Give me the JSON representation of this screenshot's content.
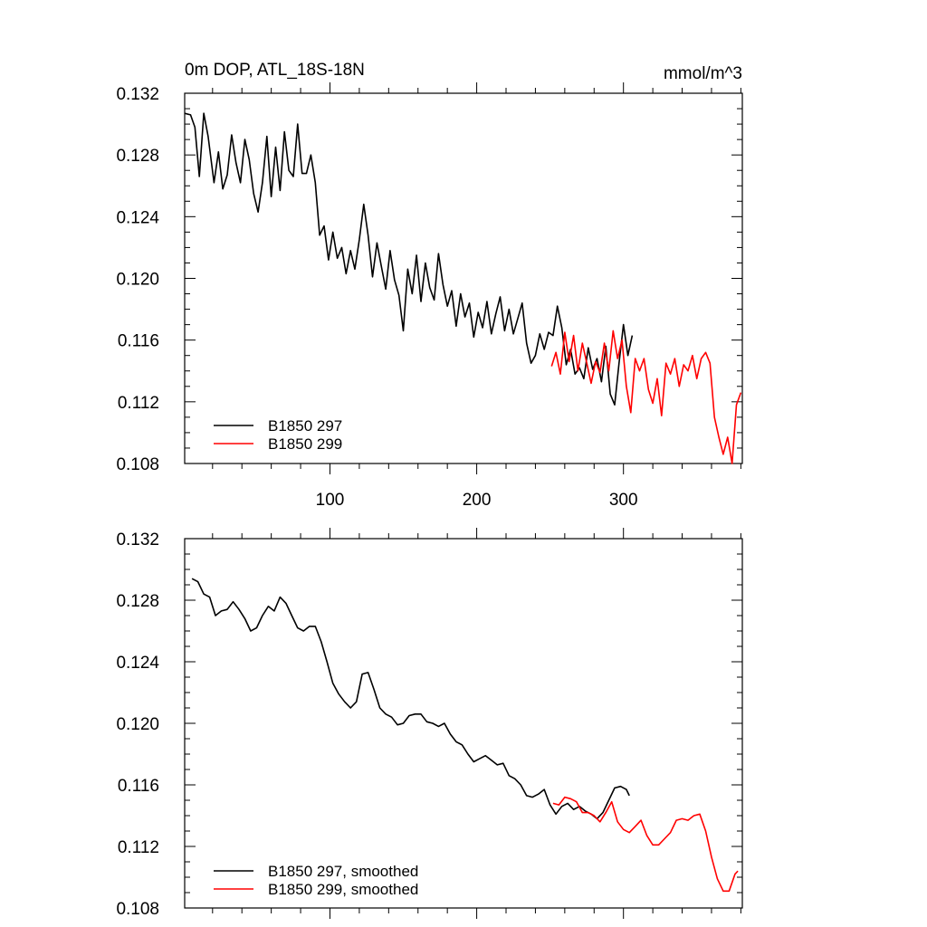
{
  "chart_data": [
    {
      "type": "line",
      "title": "0m DOP, ATL_18S-18N",
      "units": "mmol/m^3",
      "xlabel": "",
      "ylabel": "",
      "xlim": [
        1,
        381
      ],
      "ylim": [
        0.108,
        0.132
      ],
      "xticks": [
        100,
        200,
        300
      ],
      "xtick_labels": [
        "100",
        "200",
        "300"
      ],
      "yticks": [
        0.108,
        0.112,
        0.116,
        0.12,
        0.124,
        0.128,
        0.132
      ],
      "ytick_labels": [
        "0.108",
        "0.112",
        "0.116",
        "0.120",
        "0.124",
        "0.128",
        "0.132"
      ],
      "legend_position": "bottom-left",
      "series": [
        {
          "name": "B1850 297",
          "color": "#000000",
          "x": [
            1,
            5,
            8,
            11,
            14,
            17,
            21,
            24,
            27,
            30,
            33,
            36,
            39,
            42,
            45,
            48,
            51,
            54,
            57,
            60,
            63,
            66,
            69,
            72,
            75,
            78,
            81,
            84,
            87,
            90,
            93,
            96,
            99,
            102,
            105,
            108,
            111,
            114,
            117,
            120,
            123,
            126,
            129,
            132,
            135,
            138,
            141,
            144,
            147,
            150,
            153,
            156,
            159,
            162,
            165,
            168,
            171,
            174,
            177,
            180,
            183,
            186,
            189,
            192,
            195,
            198,
            201,
            204,
            207,
            210,
            213,
            216,
            219,
            222,
            225,
            228,
            231,
            234,
            237,
            240,
            243,
            246,
            249,
            252,
            255,
            258,
            261,
            264,
            267,
            270,
            273,
            276,
            279,
            282,
            285,
            288,
            291,
            294,
            297,
            300,
            303,
            306
          ],
          "values": [
            0.1307,
            0.1306,
            0.1298,
            0.1266,
            0.1307,
            0.1292,
            0.1262,
            0.1282,
            0.1258,
            0.1267,
            0.1293,
            0.1275,
            0.1262,
            0.129,
            0.1277,
            0.1255,
            0.1243,
            0.1262,
            0.1292,
            0.1253,
            0.1285,
            0.1257,
            0.1295,
            0.127,
            0.1266,
            0.13,
            0.1268,
            0.1268,
            0.128,
            0.1262,
            0.1228,
            0.1234,
            0.1212,
            0.123,
            0.1213,
            0.122,
            0.1203,
            0.1218,
            0.1206,
            0.1225,
            0.1248,
            0.1228,
            0.1201,
            0.1223,
            0.1208,
            0.1193,
            0.1218,
            0.1199,
            0.1189,
            0.1166,
            0.1206,
            0.119,
            0.1215,
            0.1185,
            0.121,
            0.1194,
            0.1186,
            0.1216,
            0.1196,
            0.1182,
            0.1192,
            0.1169,
            0.119,
            0.1175,
            0.1184,
            0.1162,
            0.1178,
            0.1168,
            0.1185,
            0.1164,
            0.1177,
            0.1188,
            0.1166,
            0.118,
            0.1164,
            0.1174,
            0.1184,
            0.1158,
            0.1145,
            0.115,
            0.1164,
            0.1154,
            0.1165,
            0.1163,
            0.1182,
            0.1168,
            0.1144,
            0.1154,
            0.1138,
            0.1142,
            0.1135,
            0.1155,
            0.1141,
            0.1148,
            0.1133,
            0.1156,
            0.1125,
            0.1118,
            0.1145,
            0.117,
            0.115,
            0.1163
          ]
        },
        {
          "name": "B1850 299",
          "color": "#ff0000",
          "x": [
            251,
            254,
            257,
            260,
            263,
            266,
            269,
            272,
            275,
            278,
            281,
            284,
            287,
            290,
            293,
            296,
            299,
            302,
            305,
            308,
            311,
            314,
            317,
            320,
            323,
            326,
            329,
            332,
            335,
            338,
            341,
            344,
            347,
            350,
            353,
            356,
            359,
            362,
            365,
            368,
            371,
            374,
            377,
            380
          ],
          "values": [
            0.1143,
            0.1152,
            0.1138,
            0.1165,
            0.1146,
            0.1163,
            0.114,
            0.1158,
            0.1145,
            0.1132,
            0.1146,
            0.1139,
            0.1158,
            0.114,
            0.1166,
            0.1148,
            0.116,
            0.113,
            0.1113,
            0.1148,
            0.114,
            0.1148,
            0.1128,
            0.1119,
            0.1135,
            0.1111,
            0.1145,
            0.1138,
            0.1148,
            0.113,
            0.1144,
            0.114,
            0.115,
            0.1135,
            0.1148,
            0.1152,
            0.1145,
            0.111,
            0.1097,
            0.1086,
            0.1097,
            0.108,
            0.1118,
            0.1126
          ]
        }
      ]
    },
    {
      "type": "line",
      "title": "",
      "xlabel": "",
      "ylabel": "",
      "xlim": [
        1,
        381
      ],
      "ylim": [
        0.108,
        0.132
      ],
      "xticks": [
        100,
        200,
        300
      ],
      "yticks": [
        0.108,
        0.112,
        0.116,
        0.12,
        0.124,
        0.128,
        0.132
      ],
      "ytick_labels": [
        "0.108",
        "0.112",
        "0.116",
        "0.120",
        "0.124",
        "0.128",
        "0.132"
      ],
      "legend_position": "bottom-left",
      "series": [
        {
          "name": "B1850 297, smoothed",
          "color": "#000000",
          "x": [
            6,
            10,
            14,
            18,
            22,
            26,
            30,
            34,
            38,
            42,
            46,
            50,
            54,
            58,
            62,
            66,
            70,
            74,
            78,
            82,
            86,
            90,
            94,
            98,
            102,
            106,
            110,
            114,
            118,
            122,
            126,
            130,
            134,
            138,
            142,
            146,
            150,
            154,
            158,
            162,
            166,
            170,
            174,
            178,
            182,
            186,
            190,
            194,
            198,
            202,
            206,
            210,
            214,
            218,
            222,
            226,
            230,
            234,
            238,
            242,
            246,
            250,
            254,
            258,
            262,
            266,
            270,
            274,
            278,
            282,
            286,
            290,
            294,
            298,
            302,
            304
          ],
          "values": [
            0.1294,
            0.1292,
            0.1284,
            0.1282,
            0.127,
            0.1273,
            0.1274,
            0.1279,
            0.1274,
            0.1268,
            0.126,
            0.1262,
            0.127,
            0.1276,
            0.1273,
            0.1282,
            0.1278,
            0.127,
            0.1262,
            0.126,
            0.1263,
            0.1263,
            0.1253,
            0.124,
            0.1226,
            0.1219,
            0.1214,
            0.121,
            0.1214,
            0.1232,
            0.1233,
            0.1222,
            0.121,
            0.1206,
            0.1204,
            0.1199,
            0.12,
            0.1205,
            0.1206,
            0.1206,
            0.1201,
            0.12,
            0.1198,
            0.12,
            0.1193,
            0.1188,
            0.1186,
            0.118,
            0.1175,
            0.1177,
            0.1179,
            0.1176,
            0.1173,
            0.1174,
            0.1166,
            0.1164,
            0.116,
            0.1153,
            0.1152,
            0.1154,
            0.1157,
            0.1147,
            0.1141,
            0.1146,
            0.1148,
            0.1144,
            0.1146,
            0.1143,
            0.1141,
            0.1138,
            0.1142,
            0.115,
            0.1158,
            0.1159,
            0.1157,
            0.1153
          ]
        },
        {
          "name": "B1850 299, smoothed",
          "color": "#ff0000",
          "x": [
            252,
            256,
            260,
            264,
            268,
            272,
            276,
            280,
            284,
            288,
            292,
            296,
            300,
            304,
            308,
            312,
            316,
            320,
            324,
            328,
            332,
            336,
            340,
            344,
            348,
            352,
            356,
            360,
            364,
            368,
            372,
            376,
            378
          ],
          "values": [
            0.1148,
            0.1147,
            0.1152,
            0.1151,
            0.1149,
            0.1142,
            0.1142,
            0.114,
            0.1136,
            0.1142,
            0.1149,
            0.1136,
            0.1131,
            0.1129,
            0.1133,
            0.1137,
            0.1127,
            0.1121,
            0.1121,
            0.1125,
            0.1129,
            0.1137,
            0.1138,
            0.1137,
            0.114,
            0.1141,
            0.113,
            0.1113,
            0.1099,
            0.1091,
            0.1091,
            0.1102,
            0.1104
          ]
        }
      ]
    }
  ]
}
